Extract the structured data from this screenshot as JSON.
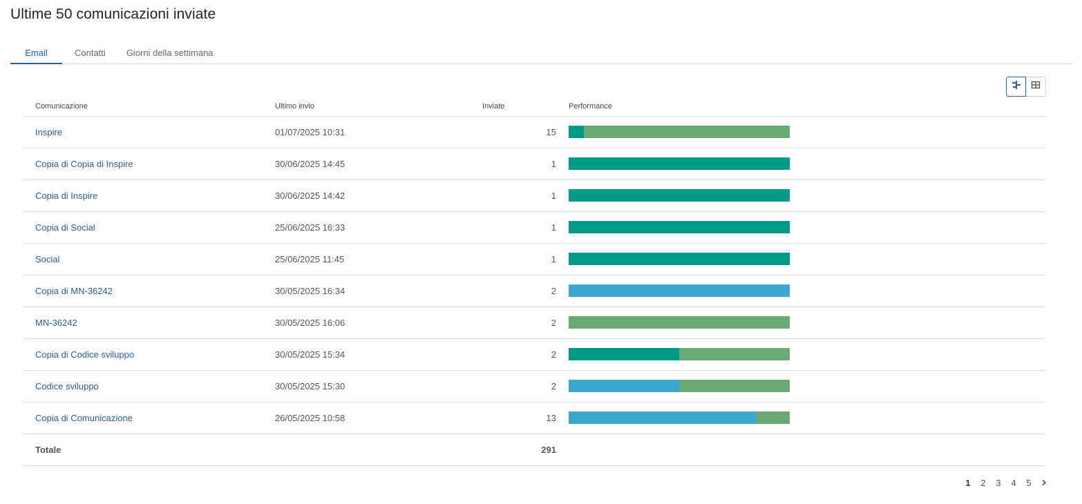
{
  "page": {
    "title": "Ultime 50 comunicazioni inviate"
  },
  "tabs": [
    {
      "label": "Email",
      "active": true
    },
    {
      "label": "Contatti",
      "active": false
    },
    {
      "label": "Giorni della settimana",
      "active": false
    }
  ],
  "view_toggle": {
    "options": [
      "chart-view-icon",
      "table-view-icon"
    ],
    "active": "chart-view-icon"
  },
  "table": {
    "headers": {
      "name": "Comunicazione",
      "date": "Ultimo invio",
      "sent": "Inviate",
      "perf": "Performance"
    },
    "rows": [
      {
        "name": "Inspire",
        "date": "01/07/2025 10:31",
        "sent": "15",
        "perf": [
          0.07,
          0.0,
          0.93
        ]
      },
      {
        "name": "Copia di Copia di Inspire",
        "date": "30/06/2025 14:45",
        "sent": "1",
        "perf": [
          1.0,
          0.0,
          0.0
        ]
      },
      {
        "name": "Copia di Inspire",
        "date": "30/06/2025 14:42",
        "sent": "1",
        "perf": [
          1.0,
          0.0,
          0.0
        ]
      },
      {
        "name": "Copia di Social",
        "date": "25/06/2025 16:33",
        "sent": "1",
        "perf": [
          1.0,
          0.0,
          0.0
        ]
      },
      {
        "name": "Social",
        "date": "25/06/2025 11:45",
        "sent": "1",
        "perf": [
          1.0,
          0.0,
          0.0
        ]
      },
      {
        "name": "Copia di MN-36242",
        "date": "30/05/2025 16:34",
        "sent": "2",
        "perf": [
          0.0,
          1.0,
          0.0
        ]
      },
      {
        "name": "MN-36242",
        "date": "30/05/2025 16:06",
        "sent": "2",
        "perf": [
          0.0,
          0.0,
          1.0
        ]
      },
      {
        "name": "Copia di Codice sviluppo",
        "date": "30/05/2025 15:34",
        "sent": "2",
        "perf": [
          0.5,
          0.0,
          0.5
        ]
      },
      {
        "name": "Codice sviluppo",
        "date": "30/05/2025 15:30",
        "sent": "2",
        "perf": [
          0.0,
          0.5,
          0.5
        ]
      },
      {
        "name": "Copia di Comunicazione",
        "date": "26/05/2025 10:58",
        "sent": "13",
        "perf": [
          0.0,
          0.846,
          0.154
        ]
      }
    ],
    "total": {
      "label": "Totale",
      "sent": "291"
    }
  },
  "perf_colors": [
    "#009b88",
    "#3aa8cf",
    "#6aa874"
  ],
  "pagination": {
    "pages": [
      "1",
      "2",
      "3",
      "4",
      "5"
    ],
    "current": "1"
  }
}
